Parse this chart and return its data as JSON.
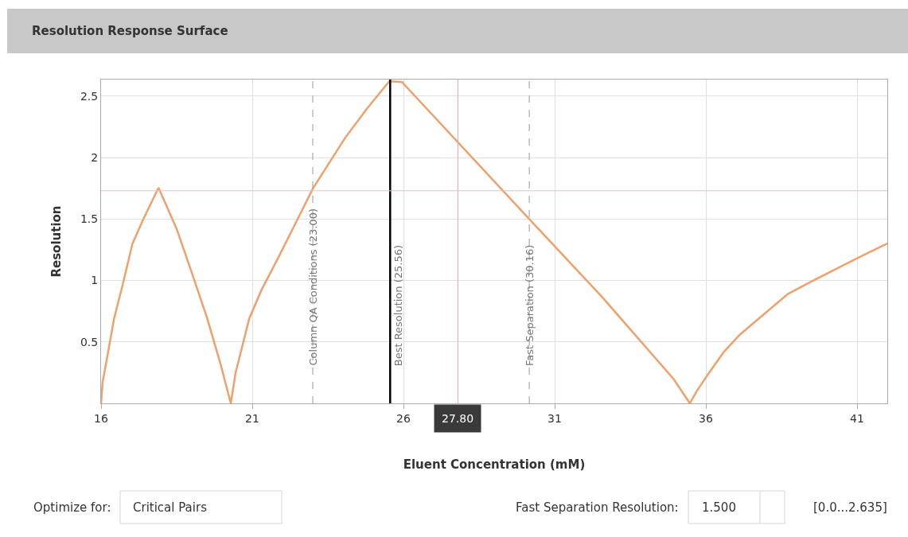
{
  "chart_data": {
    "type": "line",
    "title": "Resolution Response Surface",
    "xlabel": "Eluent Concentration (mM)",
    "ylabel": "Resolution",
    "x": [
      16,
      16.05,
      16.17,
      16.43,
      16.7,
      17.04,
      17.4,
      17.9,
      18.5,
      19.06,
      19.5,
      19.94,
      20.1,
      20.29,
      20.45,
      20.9,
      21.3,
      21.87,
      22.4,
      23.01,
      24.07,
      24.8,
      25.53,
      25.95,
      30.16,
      32.57,
      34.94,
      35.47,
      35.7,
      36.08,
      36.6,
      37.13,
      38.71,
      39.4,
      40.03,
      41.08,
      42.0
    ],
    "values": [
      0,
      0.17,
      0.33,
      0.69,
      0.95,
      1.3,
      1.5,
      1.755,
      1.42,
      1.02,
      0.7,
      0.33,
      0.18,
      0,
      0.25,
      0.69,
      0.92,
      1.19,
      1.45,
      1.75,
      2.16,
      2.4,
      2.62,
      2.615,
      1.5,
      0.865,
      0.196,
      0,
      0.1,
      0.24,
      0.42,
      0.56,
      0.89,
      0.98,
      1.06,
      1.19,
      1.3
    ],
    "color": "#f0a06a",
    "marker": "none",
    "line_style": "solid",
    "grid": true,
    "xlim": [
      16,
      42
    ],
    "xticks": [
      16,
      21,
      26,
      31,
      36,
      41
    ],
    "ylim": [
      0,
      2.635
    ],
    "yticks": [
      0.5,
      1,
      1.5,
      2,
      2.5
    ],
    "ref_lines": [
      {
        "axis": "x",
        "value": 23.0,
        "label": "Column QA Conditions (23.00)",
        "color": "#999999",
        "line_style": "dashed"
      },
      {
        "axis": "x",
        "value": 25.56,
        "label": "Best Resolution (25.56)",
        "color": "#000000",
        "line_style": "solid"
      },
      {
        "axis": "x",
        "value": 30.16,
        "label": "Fast Separation (30.16)",
        "color": "#999999",
        "line_style": "dashed"
      },
      {
        "axis": "x",
        "value": 27.8,
        "label": "27.80",
        "color": "#d9a8a8",
        "line_style": "solid"
      },
      {
        "axis": "y",
        "value": 1.73,
        "color": "#ecbcbc",
        "line_style": "solid"
      }
    ],
    "annotations": [
      "Optimize for:",
      "Critical Pairs",
      "Fast Separation Resolution:",
      "1.500",
      "[0.0...2.635]"
    ]
  }
}
